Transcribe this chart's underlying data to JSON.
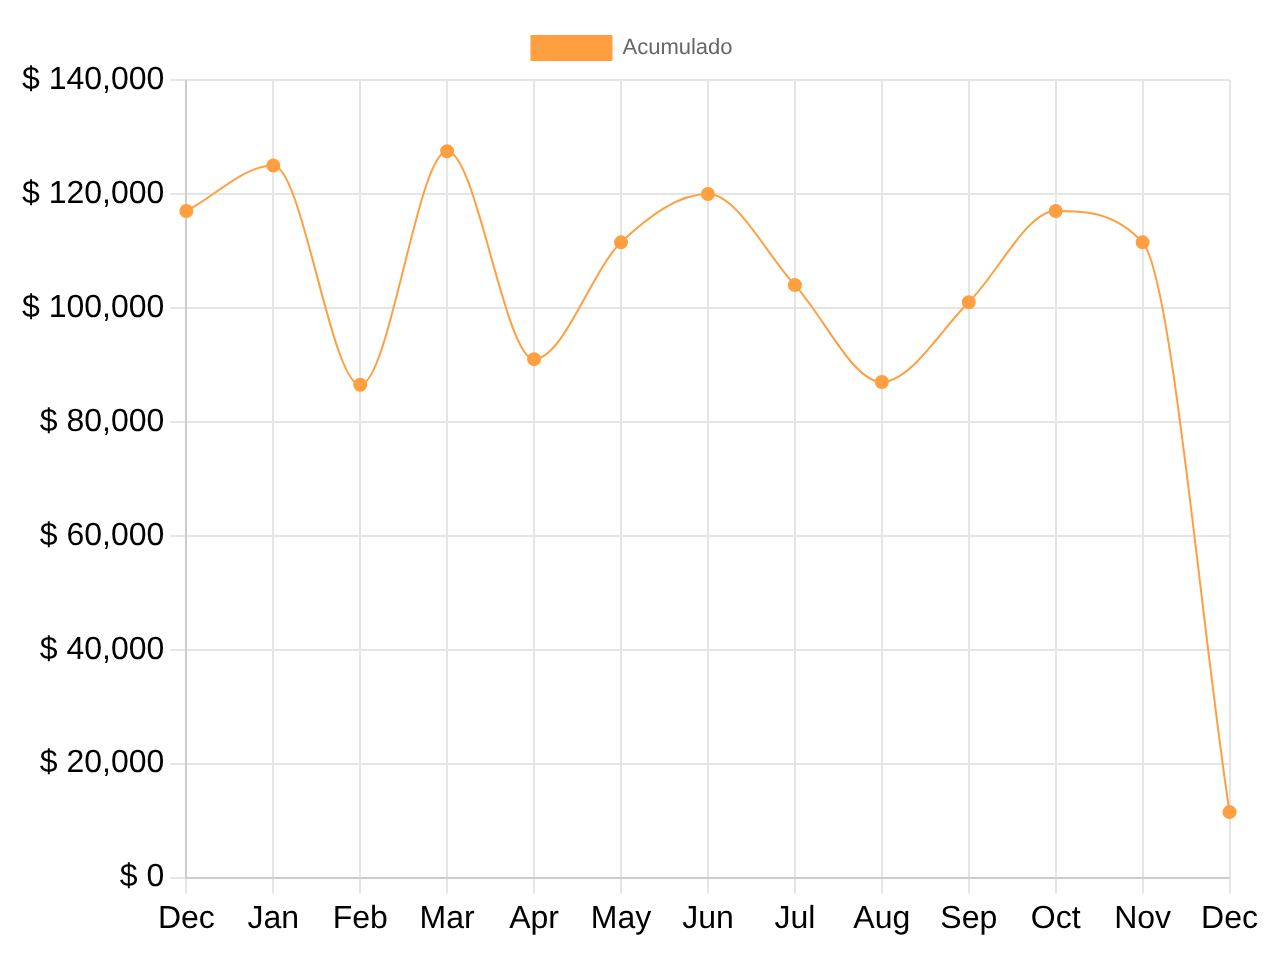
{
  "chart_data": {
    "type": "line",
    "categories": [
      "Dec",
      "Jan",
      "Feb",
      "Mar",
      "Apr",
      "May",
      "Jun",
      "Jul",
      "Aug",
      "Sep",
      "Oct",
      "Nov",
      "Dec"
    ],
    "series": [
      {
        "name": "Acumulado",
        "color": "#ff9f40",
        "values": [
          117000,
          125000,
          86500,
          127500,
          91000,
          111500,
          120000,
          104000,
          87000,
          101000,
          117000,
          111500,
          11500
        ]
      }
    ],
    "ylim": [
      0,
      140000
    ],
    "yticks": [
      {
        "value": 0,
        "label": "$ 0"
      },
      {
        "value": 20000,
        "label": "$ 20,000"
      },
      {
        "value": 40000,
        "label": "$ 40,000"
      },
      {
        "value": 60000,
        "label": "$ 60,000"
      },
      {
        "value": 80000,
        "label": "$ 80,000"
      },
      {
        "value": 100000,
        "label": "$ 100,000"
      },
      {
        "value": 120000,
        "label": "$ 120,000"
      },
      {
        "value": 140000,
        "label": "$ 140,000"
      }
    ],
    "grid": true,
    "legend": "top",
    "marker": "circle",
    "line_style": "solid"
  }
}
